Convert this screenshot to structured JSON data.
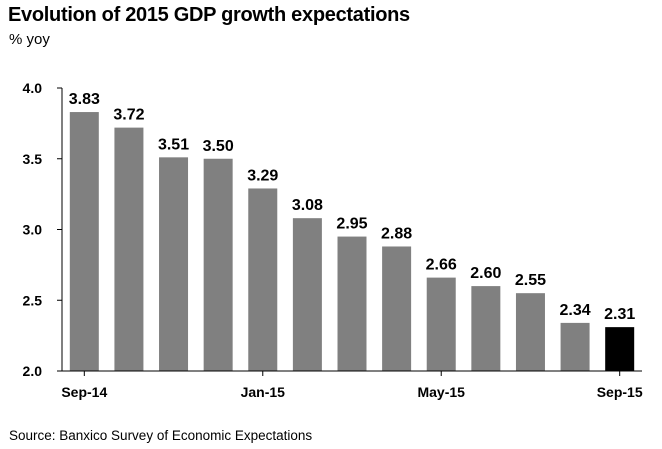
{
  "header": {
    "title": "Evolution of 2015 GDP growth expectations",
    "subtitle": "% yoy"
  },
  "footer": {
    "source": "Source: Banxico Survey of Economic Expectations"
  },
  "chart_data": {
    "type": "bar",
    "title": "Evolution of 2015 GDP growth expectations",
    "ylabel": "% yoy",
    "xlabel": "",
    "ylim": [
      2.0,
      4.0
    ],
    "yticks": [
      "2.0",
      "2.5",
      "3.0",
      "3.5",
      "4.0"
    ],
    "categories": [
      "Sep-14",
      "Oct-14",
      "Nov-14",
      "Dec-14",
      "Jan-15",
      "Feb-15",
      "Mar-15",
      "Apr-15",
      "May-15",
      "Jun-15",
      "Jul-15",
      "Aug-15",
      "Sep-15"
    ],
    "x_tick_labels": [
      {
        "index": 0,
        "text": "Sep-14"
      },
      {
        "index": 4,
        "text": "Jan-15"
      },
      {
        "index": 8,
        "text": "May-15"
      },
      {
        "index": 12,
        "text": "Sep-15"
      }
    ],
    "values": [
      3.83,
      3.72,
      3.51,
      3.5,
      3.29,
      3.08,
      2.95,
      2.88,
      2.66,
      2.6,
      2.55,
      2.34,
      2.31
    ],
    "data_labels": [
      "3.83",
      "3.72",
      "3.51",
      "3.50",
      "3.29",
      "3.08",
      "2.95",
      "2.88",
      "2.66",
      "2.60",
      "2.55",
      "2.34",
      "2.31"
    ],
    "bar_color": "#808080",
    "highlight_color": "#000000",
    "highlight_index": 12,
    "grid": false,
    "legend": "none"
  }
}
